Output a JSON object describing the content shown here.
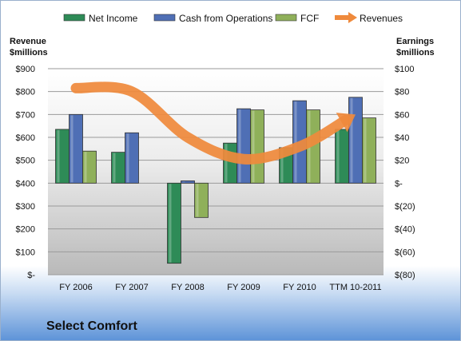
{
  "chart_data": {
    "type": "bar",
    "title": "Select Comfort",
    "categories": [
      "FY 2006",
      "FY 2007",
      "FY 2008",
      "FY 2009",
      "FY 2010",
      "TTM 10-2011"
    ],
    "left_axis": {
      "label_line1": "Revenue",
      "label_line2": "$millions",
      "range": [
        0,
        900
      ],
      "tick_labels": [
        "$-",
        "$100",
        "$200",
        "$300",
        "$400",
        "$500",
        "$600",
        "$700",
        "$800",
        "$900"
      ]
    },
    "right_axis": {
      "label_line1": "Earnings",
      "label_line2": "$millions",
      "range": [
        -80,
        100
      ],
      "tick_labels": [
        "$(80)",
        "$(60)",
        "$(40)",
        "$(20)",
        "$-",
        "$20",
        "$40",
        "$60",
        "$80",
        "$100"
      ]
    },
    "series": [
      {
        "name": "Net Income",
        "axis": "right",
        "kind": "bar",
        "color": "#2e8b57",
        "values": [
          47,
          27,
          -70,
          35,
          31,
          47
        ]
      },
      {
        "name": "Cash from Operations",
        "axis": "right",
        "kind": "bar",
        "color": "#4f6fb5",
        "values": [
          60,
          44,
          2,
          65,
          72,
          75
        ]
      },
      {
        "name": "FCF",
        "axis": "right",
        "kind": "bar",
        "color": "#8fb05a",
        "values": [
          28,
          0,
          -30,
          64,
          64,
          57
        ]
      },
      {
        "name": "Revenues",
        "axis": "left",
        "kind": "line",
        "color": "#ef8a3c",
        "values": [
          815,
          800,
          600,
          505,
          560,
          700
        ]
      }
    ],
    "legend_position": "top",
    "grid": true
  }
}
